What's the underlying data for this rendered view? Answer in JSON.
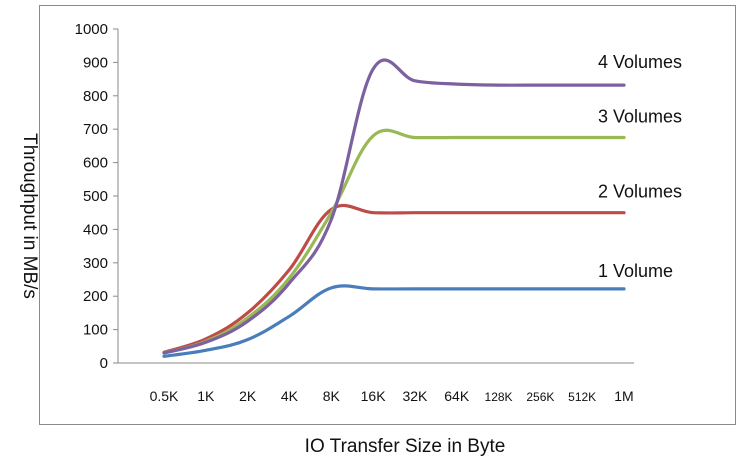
{
  "chart_data": {
    "type": "line",
    "title": "",
    "xlabel": "IO Transfer Size in Byte",
    "ylabel": "Throughput  in MB/s",
    "ylim": [
      0,
      1000
    ],
    "yticks": [
      "0",
      "100",
      "200",
      "300",
      "400",
      "500",
      "600",
      "700",
      "800",
      "900",
      "1000"
    ],
    "categories": [
      "0.5K",
      "1K",
      "2K",
      "4K",
      "8K",
      "16K",
      "32K",
      "64K",
      "128K",
      "256K",
      "512K",
      "1M"
    ],
    "grid": false,
    "legend": "labels at right end of each line",
    "series": [
      {
        "name": "1 Volume",
        "color": "#4a7ebb",
        "values": [
          20,
          38,
          70,
          140,
          225,
          222,
          222,
          222,
          222,
          222,
          222,
          222
        ]
      },
      {
        "name": "2 Volumes",
        "color": "#be4b48",
        "values": [
          32,
          72,
          150,
          280,
          460,
          450,
          450,
          450,
          450,
          450,
          450,
          450
        ]
      },
      {
        "name": "3 Volumes",
        "color": "#98b954",
        "values": [
          30,
          65,
          135,
          255,
          450,
          680,
          675,
          675,
          675,
          675,
          675,
          675
        ]
      },
      {
        "name": "4 Volumes",
        "color": "#7d60a0",
        "values": [
          30,
          62,
          125,
          240,
          430,
          880,
          845,
          835,
          832,
          832,
          832,
          832
        ]
      }
    ]
  }
}
